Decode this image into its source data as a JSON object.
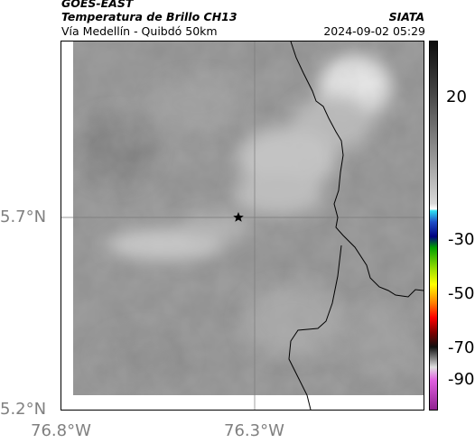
{
  "header": {
    "satellite": "GOES-EAST",
    "product": "Temperatura de Brillo CH13",
    "region": "Vía Medellín - Quibdó 50km",
    "agency": "SIATA",
    "timestamp": "2024-09-02 05:29"
  },
  "map": {
    "lat_labels": [
      "5.7°N",
      "5.2°N"
    ],
    "lon_labels": [
      "76.8°W",
      "76.3°W"
    ],
    "marker_icon": "star-icon",
    "basemap_color": "#8f8f8f",
    "coastline_color": "#000000"
  },
  "colorbar": {
    "tick_labels": [
      "20",
      "-30",
      "-50",
      "-70",
      "-90"
    ],
    "stops": [
      {
        "pos": 0.0,
        "color": "#0c0c0c"
      },
      {
        "pos": 0.15,
        "color": "#4a4a4a"
      },
      {
        "pos": 0.32,
        "color": "#9a9a9a"
      },
      {
        "pos": 0.44,
        "color": "#d9d9d9"
      },
      {
        "pos": 0.455,
        "color": "#ffffff"
      },
      {
        "pos": 0.46,
        "color": "#2ee0f0"
      },
      {
        "pos": 0.49,
        "color": "#1e50c8"
      },
      {
        "pos": 0.53,
        "color": "#000080"
      },
      {
        "pos": 0.56,
        "color": "#00a000"
      },
      {
        "pos": 0.62,
        "color": "#a0e000"
      },
      {
        "pos": 0.66,
        "color": "#ffff00"
      },
      {
        "pos": 0.71,
        "color": "#ff8000"
      },
      {
        "pos": 0.75,
        "color": "#ff0000"
      },
      {
        "pos": 0.79,
        "color": "#800000"
      },
      {
        "pos": 0.83,
        "color": "#101010"
      },
      {
        "pos": 0.86,
        "color": "#808080"
      },
      {
        "pos": 0.885,
        "color": "#e0e0e0"
      },
      {
        "pos": 0.92,
        "color": "#e060e0"
      },
      {
        "pos": 1.0,
        "color": "#902090"
      }
    ]
  }
}
